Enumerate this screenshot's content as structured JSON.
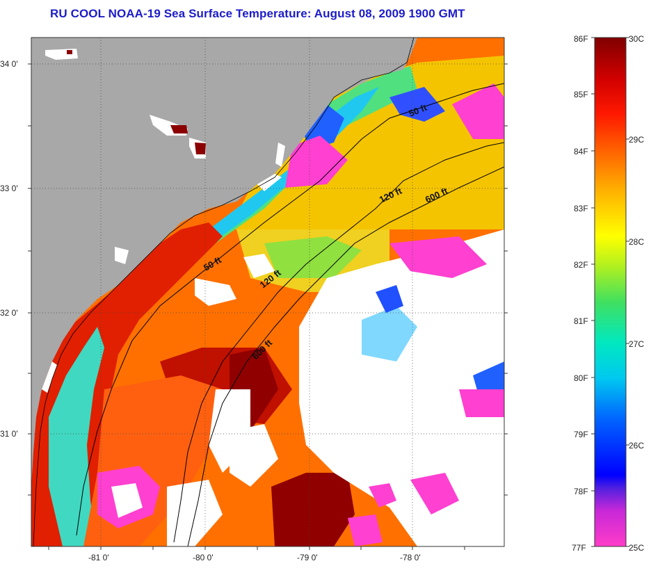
{
  "title": "RU COOL  NOAA-19  Sea Surface Temperature:  August 08, 2009 1900 GMT",
  "lat_labels": [
    "34 0'",
    "33 0'",
    "32 0'",
    "31 0'"
  ],
  "lon_labels": [
    "-81 0'",
    "-80 0'",
    "-79 0'",
    "-78 0'"
  ],
  "contour_labels": [
    "50 ft",
    "120 ft",
    "600 ft",
    "50 ft",
    "120 ft",
    "600 ft"
  ],
  "colorbar": {
    "fahrenheit": [
      "86F",
      "85F",
      "84F",
      "83F",
      "82F",
      "81F",
      "80F",
      "79F",
      "78F",
      "77F"
    ],
    "celsius": [
      "30C",
      "29C",
      "28C",
      "27C",
      "26C",
      "25C"
    ]
  },
  "colors": {
    "land": "#a8a8a8",
    "cloud": "#ffffff",
    "title": "#1c1cc8",
    "contour": "#000000"
  }
}
